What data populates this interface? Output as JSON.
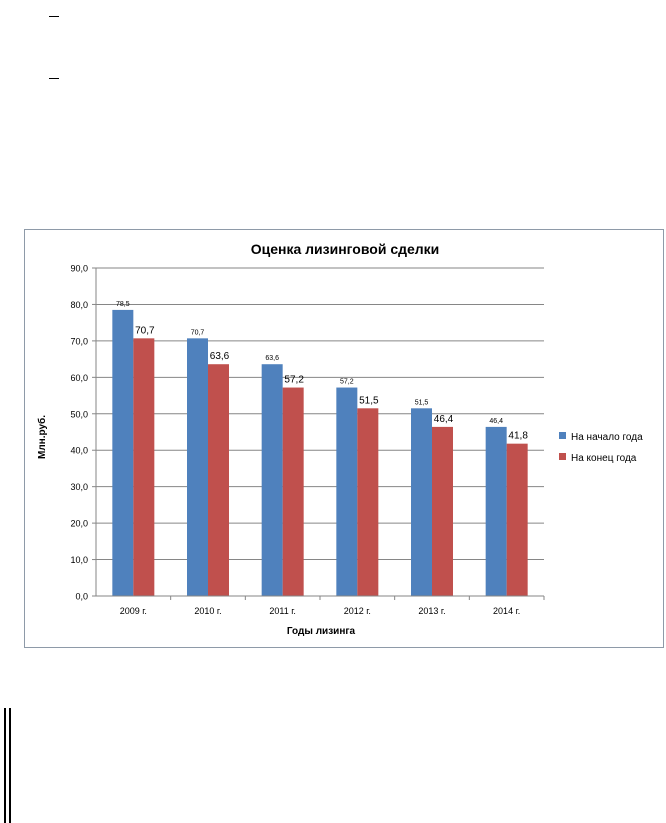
{
  "chart_data": {
    "type": "bar",
    "title": "Оценка лизинговой сделки",
    "xlabel": "Годы лизинга",
    "ylabel": "Млн.руб.",
    "categories": [
      "2009  г.",
      "2010  г.",
      "2011  г.",
      "2012  г.",
      "2013  г.",
      "2014  г."
    ],
    "series": [
      {
        "name": "На начало года",
        "values": [
          78.5,
          70.7,
          63.6,
          57.2,
          51.5,
          46.4
        ],
        "labels": [
          "78,5",
          "70,7",
          "63,6",
          "57,2",
          "51,5",
          "46,4"
        ],
        "color": "#4f81bd"
      },
      {
        "name": "На конец года",
        "values": [
          70.7,
          63.6,
          57.2,
          51.5,
          46.4,
          41.8
        ],
        "labels": [
          "70,7",
          "63,6",
          "57,2",
          "51,5",
          "46,4",
          "41,8"
        ],
        "color": "#c0504d"
      }
    ],
    "yticks": [
      "0,0",
      "10,0",
      "20,0",
      "30,0",
      "40,0",
      "50,0",
      "60,0",
      "70,0",
      "80,0",
      "90,0"
    ],
    "ylim": [
      0,
      90
    ],
    "grid": true,
    "legend": "right"
  }
}
